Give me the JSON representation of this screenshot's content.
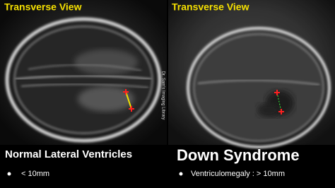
{
  "panels": [
    {
      "title": "Transverse View",
      "caption": "Normal Lateral Ventricles",
      "bullet": "< 10mm"
    },
    {
      "title": "Transverse View",
      "caption": "Down Syndrome",
      "bullet": "Ventriculomegaly : > 10mm"
    }
  ],
  "watermark": "Dr. Sam's Imaging Library"
}
